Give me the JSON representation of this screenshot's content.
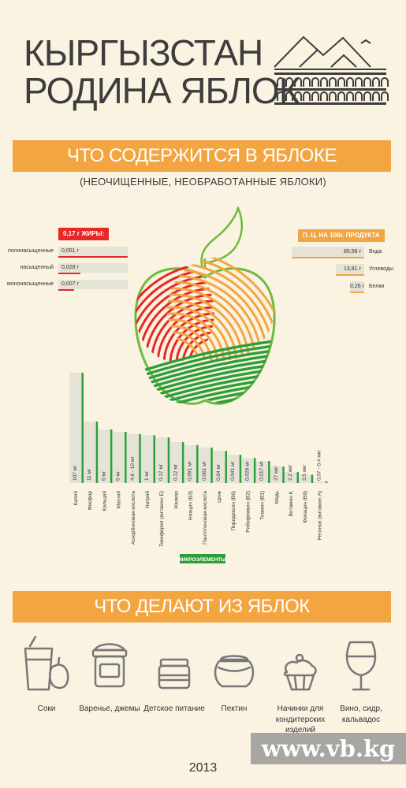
{
  "header": {
    "title_line1": "КЫРГЫЗСТАН",
    "title_line2": "РОДИНА ЯБЛОК"
  },
  "section1": {
    "banner": "ЧТО СОДЕРЖИТСЯ В ЯБЛОКЕ",
    "subtitle": "(НЕОЧИЩЕННЫЕ, НЕОБРАБОТАННЫЕ ЯБЛОКИ)"
  },
  "fats": {
    "tag": "0,17 г  ЖИРЫ:",
    "items": [
      {
        "label": "полинасыщенные",
        "value": "0,051 г"
      },
      {
        "label": "насыщенный",
        "value": "0,028 г"
      },
      {
        "label": "мононасыщенные",
        "value": "0,007 г"
      }
    ]
  },
  "nutrition": {
    "tag": "П. Ц. НА 100г. ПРОДУКТА",
    "items": [
      {
        "value": "85,56 г",
        "label": "Вода"
      },
      {
        "value": "13,81 г",
        "label": "Углеводы"
      },
      {
        "value": "0,26 г",
        "label": "Белки"
      }
    ]
  },
  "chart_data": {
    "type": "bar",
    "legend": "МИКРОЭЛЕМЕНТЫ:",
    "categories": [
      "Калий",
      "Фосфор",
      "Кальций",
      "Магний",
      "Аскорбиновая кислота",
      "Натрий",
      "Токоферол (витамин E)",
      "Железо",
      "Ниацин (B3)",
      "Пантотеновая кислота",
      "Цинк",
      "Пиридоксин (B6)",
      "Рибофлавин (B2)",
      "Тиамин (B1)",
      "Медь",
      "Витамин K",
      "Фолацин (B9)",
      "Ретинол (витамин A)"
    ],
    "value_labels": [
      "107 мг",
      "11 мг",
      "6 мг",
      "5 мг",
      "4,6 - 10 мг",
      "1 мг",
      "0,17 мг",
      "0,12 мг",
      "0,091 мг",
      "0,061 мг",
      "0,04 мг",
      "0,041 мг",
      "0,026 мг",
      "0,017 мг",
      "27 мкг",
      "2,2 мкг",
      "3,5 мкг",
      "0,07 - 0,4 мкг"
    ],
    "color": "#2e9e3a",
    "shade_color": "#e4e3d6"
  },
  "section2": {
    "banner": "ЧТО ДЕЛАЮТ ИЗ ЯБЛОК",
    "products": [
      {
        "icon": "juice-glass-icon",
        "label": "Соки"
      },
      {
        "icon": "jam-jar-icon",
        "label": "Варенье, джемы"
      },
      {
        "icon": "baby-food-jar-icon",
        "label": "Детское питание"
      },
      {
        "icon": "pectin-jar-icon",
        "label": "Пектин"
      },
      {
        "icon": "cupcake-icon",
        "label": "Начинки для кондитерских изделий"
      },
      {
        "icon": "wine-glass-icon",
        "label": "Вино, сидр, кальвадос"
      }
    ]
  },
  "footer": {
    "year": "2013",
    "watermark": "www.vb.kg"
  }
}
